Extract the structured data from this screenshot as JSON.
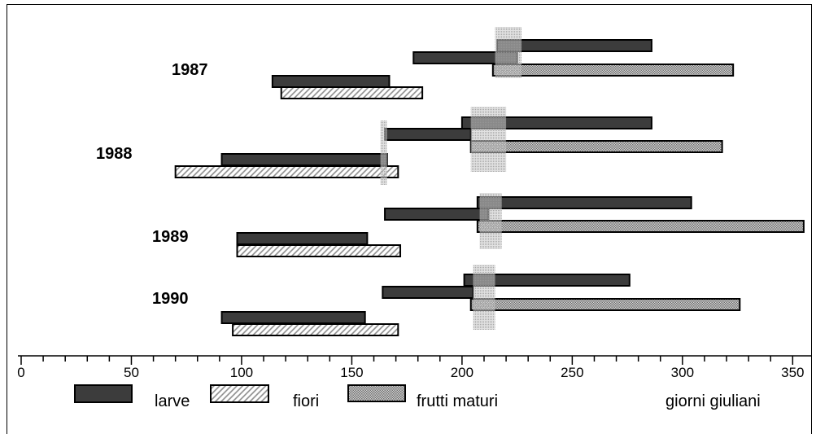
{
  "chart_data": {
    "type": "bar",
    "orientation": "horizontal",
    "categories": [
      "1987",
      "1988",
      "1989",
      "1990"
    ],
    "xlabel": "giorni giuliani",
    "xlim": [
      0,
      358
    ],
    "xticks": [
      0,
      50,
      100,
      150,
      200,
      250,
      300,
      350
    ],
    "grid": false,
    "legend_position": "bottom",
    "series": [
      {
        "name": "larve",
        "pattern": "solid",
        "color": "#3c3c3c",
        "values": [
          [
            [
              216,
              286
            ],
            [
              178,
              225
            ],
            [
              114,
              167
            ]
          ],
          [
            [
              200,
              286
            ],
            [
              165,
              204
            ],
            [
              91,
              166
            ]
          ],
          [
            [
              207,
              304
            ],
            [
              165,
              212
            ],
            [
              98,
              157
            ]
          ],
          [
            [
              201,
              276
            ],
            [
              164,
              205
            ],
            [
              91,
              156
            ]
          ]
        ]
      },
      {
        "name": "fiori",
        "pattern": "hatched",
        "color": "#8a8a8a",
        "values": [
          [
            [
              118,
              182
            ]
          ],
          [
            [
              70,
              171
            ]
          ],
          [
            [
              98,
              172
            ]
          ],
          [
            [
              96,
              171
            ]
          ]
        ]
      },
      {
        "name": "frutti maturi",
        "pattern": "dotted",
        "color": "#6e6e6e",
        "values": [
          [
            [
              214,
              323
            ]
          ],
          [
            [
              204,
              318
            ]
          ],
          [
            [
              207,
              355
            ]
          ],
          [
            [
              204,
              326
            ]
          ]
        ]
      }
    ],
    "shaded_intervals": [
      [
        [
          215,
          227
        ]
      ],
      [
        [
          204,
          220
        ],
        [
          163,
          166
        ]
      ],
      [
        [
          208,
          218
        ]
      ],
      [
        [
          205,
          215
        ]
      ]
    ],
    "shaded_color": "#c8c8c8"
  }
}
